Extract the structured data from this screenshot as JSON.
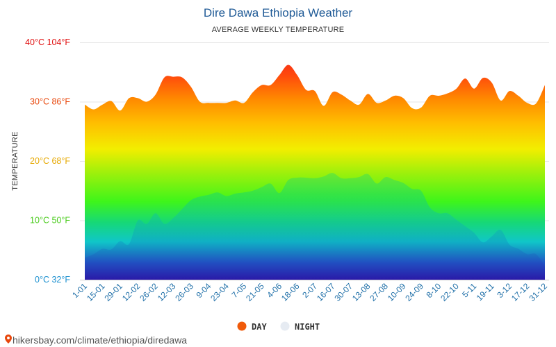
{
  "chart_data": {
    "type": "area",
    "title": "Dire Dawa Ethiopia Weather",
    "subtitle": "AVERAGE WEEKLY TEMPERATURE",
    "ylabel": "TEMPERATURE",
    "ylim": [
      0,
      40
    ],
    "grid": true,
    "legend_position": "bottom",
    "y_ticks": [
      {
        "value": 0,
        "label": "0°C 32°F",
        "color": "#1a8fcf"
      },
      {
        "value": 10,
        "label": "10°C 50°F",
        "color": "#4ccc1f"
      },
      {
        "value": 20,
        "label": "20°C 68°F",
        "color": "#e6a800"
      },
      {
        "value": 30,
        "label": "30°C 86°F",
        "color": "#e8470c"
      },
      {
        "value": 40,
        "label": "40°C 104°F",
        "color": "#e01010"
      }
    ],
    "x_labels": [
      "1-01",
      "15-01",
      "29-01",
      "12-02",
      "26-02",
      "12-03",
      "26-03",
      "9-04",
      "23-04",
      "7-05",
      "21-05",
      "4-06",
      "18-06",
      "2-07",
      "16-07",
      "30-07",
      "13-08",
      "27-08",
      "10-09",
      "24-09",
      "8-10",
      "22-10",
      "5-11",
      "19-11",
      "3-12",
      "17-12",
      "31-12"
    ],
    "series": [
      {
        "name": "DAY",
        "legend_color": "#f05a0a",
        "values": [
          29.5,
          28.7,
          29.5,
          30.1,
          28.5,
          30.6,
          30.6,
          30.0,
          31.2,
          34.1,
          34.2,
          34.1,
          32.5,
          30.0,
          29.8,
          29.8,
          29.8,
          30.2,
          29.8,
          31.6,
          32.8,
          32.8,
          34.5,
          36.2,
          34.5,
          32.0,
          31.8,
          29.3,
          31.6,
          31.2,
          30.2,
          29.5,
          31.3,
          29.8,
          30.2,
          31.0,
          30.6,
          28.9,
          29.0,
          31.0,
          31.0,
          31.4,
          32.2,
          33.9,
          32.2,
          34.0,
          33.2,
          30.2,
          31.8,
          31.0,
          29.8,
          29.7,
          32.8
        ]
      },
      {
        "name": "NIGHT",
        "legend_color": "#e6ebf2",
        "values": [
          3.7,
          4.3,
          5.2,
          5.1,
          6.5,
          6.0,
          10.0,
          9.4,
          11.2,
          9.4,
          10.4,
          11.9,
          13.4,
          14.0,
          14.3,
          14.7,
          14.1,
          14.5,
          14.7,
          15.0,
          15.6,
          16.2,
          14.6,
          16.8,
          17.2,
          17.2,
          17.1,
          17.4,
          18.0,
          17.1,
          17.1,
          17.3,
          17.8,
          16.2,
          17.3,
          16.8,
          16.3,
          15.3,
          15.0,
          12.2,
          11.2,
          11.2,
          10.1,
          9.0,
          7.9,
          6.3,
          7.3,
          8.4,
          5.9,
          5.2,
          4.3,
          4.3,
          2.3
        ]
      }
    ]
  },
  "footer": {
    "text": "hikersbay.com/climate/ethiopia/diredawa",
    "pin_color": "#e8470c"
  }
}
